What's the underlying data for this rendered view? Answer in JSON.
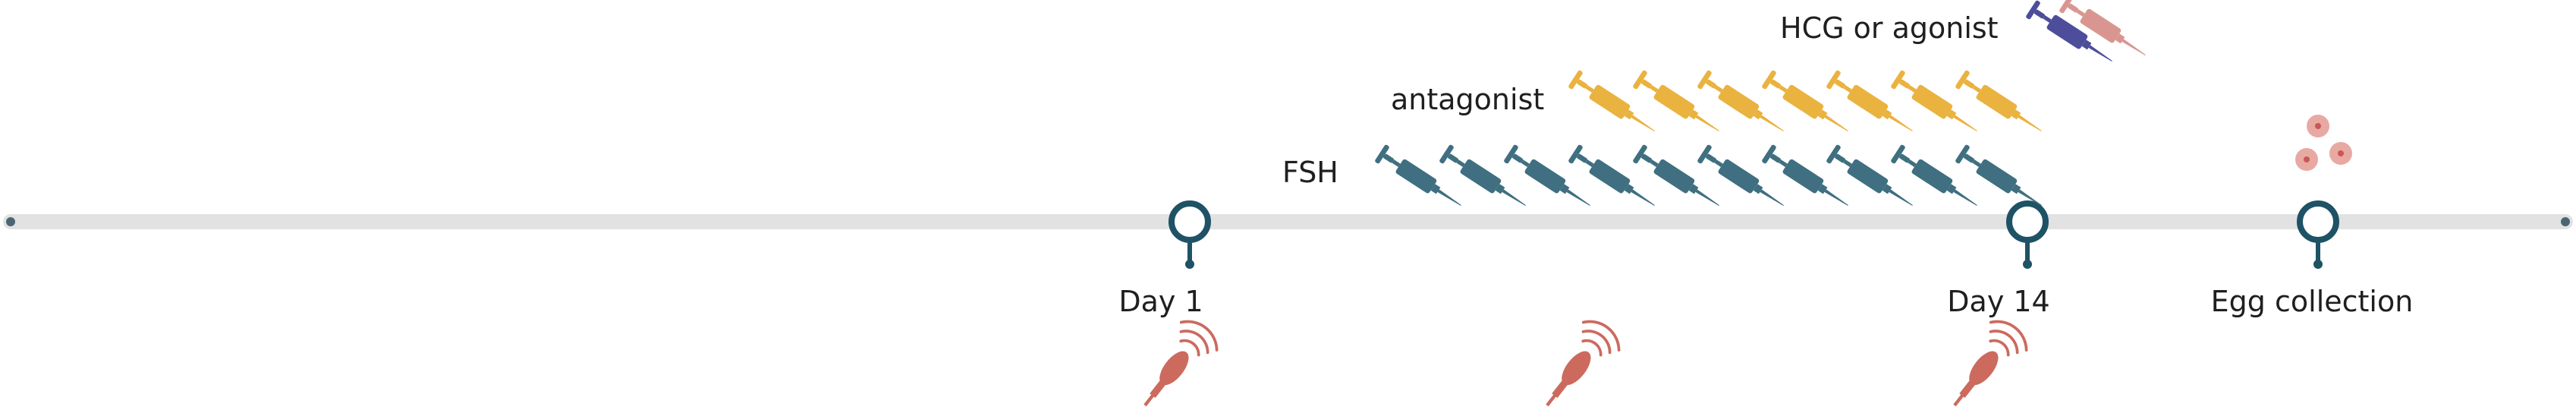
{
  "timeline": {
    "milestones": [
      {
        "label": "Day 1"
      },
      {
        "label": "Day 14"
      },
      {
        "label": "Egg collection"
      }
    ]
  },
  "medications": {
    "hcg_label": "HCG or agonist",
    "antagonist_label": "antagonist",
    "fsh_label": "FSH"
  },
  "colors": {
    "track": "#e2e2e2",
    "pin": "#1e5265",
    "fsh": "#3f6f80",
    "antagonist": "#eab23f",
    "hcg_purple": "#4d4d9b",
    "hcg_pink": "#d99690",
    "ultrasound": "#cc6a5e",
    "egg": "#e8a9a3"
  }
}
